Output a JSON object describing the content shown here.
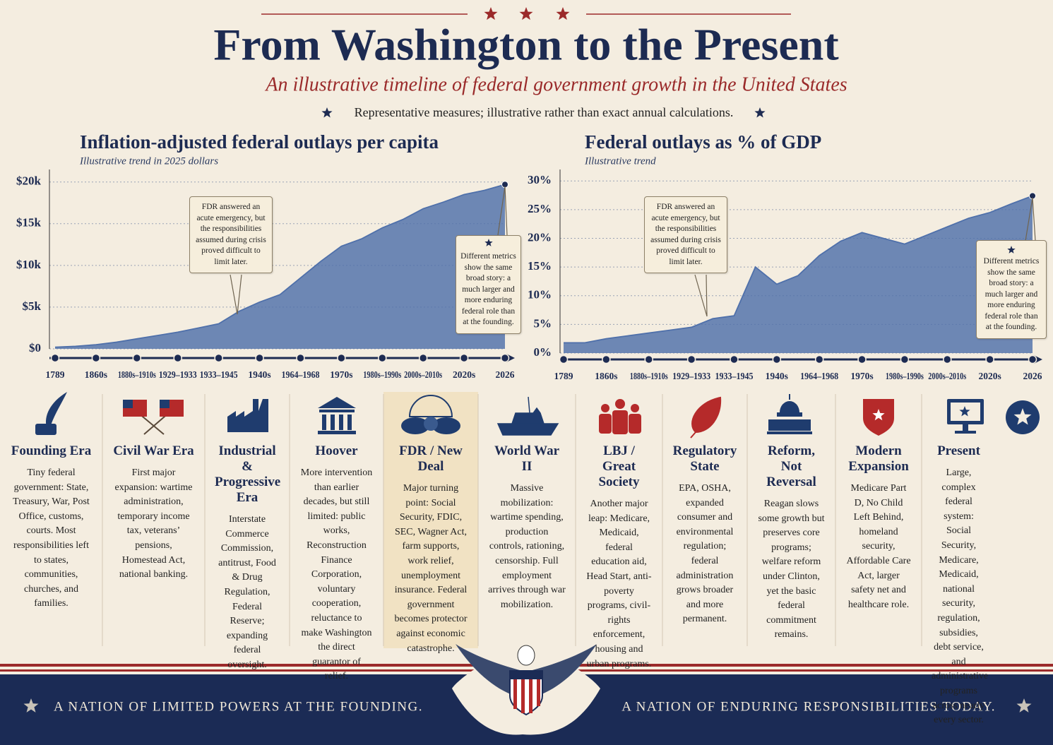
{
  "header": {
    "title": "From Washington to the Present",
    "subtitle": "An illustrative timeline of federal government growth in the United States",
    "note": "Representative measures; illustrative rather than exact annual calculations."
  },
  "chart_data": [
    {
      "type": "area",
      "title": "Inflation-adjusted federal outlays per capita",
      "subtitle": "Illustrative trend in 2025 dollars",
      "categories": [
        "1789",
        null,
        "1860s",
        null,
        "1880s–1910s",
        null,
        "1929–1933",
        null,
        "1933–1945",
        null,
        "1940s",
        null,
        "1964–1968",
        null,
        "1970s",
        null,
        "1980s–1990s",
        null,
        "2000s–2010s",
        null,
        "2020s",
        null,
        "2026"
      ],
      "values": [
        200,
        300,
        500,
        800,
        1200,
        1600,
        2000,
        2500,
        3000,
        4500,
        5600,
        6500,
        8500,
        10500,
        12300,
        13200,
        14500,
        15500,
        16800,
        17600,
        18500,
        19000,
        19700
      ],
      "color": "#4f70aa",
      "ylim": [
        0,
        21500
      ],
      "yticks": [
        {
          "value": 0,
          "label": "$0"
        },
        {
          "value": 5000,
          "label": "$5k"
        },
        {
          "value": 10000,
          "label": "$10k"
        },
        {
          "value": 15000,
          "label": "$15k"
        },
        {
          "value": 20000,
          "label": "$20k"
        }
      ],
      "grid": true,
      "annotations": [
        "FDR answered an acute emergency, but the responsibilities assumed during crisis proved difficult to limit later.",
        "Different metrics show the same broad story: a much larger and more enduring federal role than at the founding."
      ]
    },
    {
      "type": "area",
      "title": "Federal outlays as % of GDP",
      "subtitle": "Illustrative trend",
      "categories": [
        "1789",
        null,
        "1860s",
        null,
        "1880s–1910s",
        null,
        "1929–1933",
        null,
        "1933–1945",
        null,
        "1940s",
        null,
        "1964–1968",
        null,
        "1970s",
        null,
        "1980s–1990s",
        null,
        "2000s–2010s",
        null,
        "2020s",
        null,
        "2026"
      ],
      "values": [
        1.8,
        1.8,
        2.5,
        3.0,
        3.5,
        4.0,
        4.5,
        6.0,
        6.5,
        15.0,
        12.0,
        13.5,
        17.0,
        19.5,
        21.0,
        20.0,
        19.0,
        20.5,
        22.0,
        23.5,
        24.5,
        26.0,
        27.4
      ],
      "color": "#4f70aa",
      "ylim": [
        0,
        32
      ],
      "yticks": [
        {
          "value": 0,
          "label": "0%"
        },
        {
          "value": 5,
          "label": "5%"
        },
        {
          "value": 10,
          "label": "10%"
        },
        {
          "value": 15,
          "label": "15%"
        },
        {
          "value": 20,
          "label": "20%"
        },
        {
          "value": 25,
          "label": "25%"
        },
        {
          "value": 30,
          "label": "30%"
        }
      ],
      "grid": true,
      "annotations": [
        "FDR answered an acute emergency, but the responsibilities assumed during crisis proved difficult to limit later.",
        "Different metrics show the same broad story: a much larger and more enduring federal role than at the founding."
      ]
    }
  ],
  "eras": [
    {
      "title": "Founding Era",
      "text": "Tiny federal government: State, Treasury, War, Post Office, customs, courts. Most responsibilities left to states, communities, churches, and families."
    },
    {
      "title": "Civil War Era",
      "text": "First major expansion: wartime administration, temporary income tax, veterans’ pensions, Homestead Act, national banking."
    },
    {
      "title": "Industrial & Progressive Era",
      "text": "Interstate Commerce Commission, antitrust, Food & Drug Regulation, Federal Reserve; expanding federal oversight."
    },
    {
      "title": "Hoover",
      "text": "More intervention than earlier decades, but still limited: public works, Reconstruction Finance Corporation, voluntary cooperation, reluctance to make Washington the direct guarantor of relief."
    },
    {
      "title": "FDR / New Deal",
      "text": "Major turning point: Social Security, FDIC, SEC, Wagner Act, farm supports, work relief, unemployment insurance. Federal government becomes protector against economic catastrophe."
    },
    {
      "title": "World War II",
      "text": "Massive mobilization: wartime spending, production controls, rationing, censorship. Full employment arrives through war mobilization."
    },
    {
      "title": "LBJ / Great Society",
      "text": "Another major leap: Medicare, Medicaid, federal education aid, Head Start, anti-poverty programs, civil-rights enforcement, housing and urban programs."
    },
    {
      "title": "Regulatory State",
      "text": "EPA, OSHA, expanded consumer and environmental regulation; federal administration grows broader and more permanent."
    },
    {
      "title": "Reform, Not Reversal",
      "text": "Reagan slows some growth but preserves core programs; welfare reform under Clinton, yet the basic federal commitment remains."
    },
    {
      "title": "Modern Expansion",
      "text": "Medicare Part D, No Child Left Behind, homeland security, Affordable Care Act, larger safety net and healthcare role."
    },
    {
      "title": "Present",
      "text": "Large, complex federal system: Social Security, Medicare, Medicaid, national security, regulation, subsidies, debt service, and administrative programs across nearly every sector."
    }
  ],
  "footer": {
    "left": "A NATION OF LIMITED POWERS AT THE FOUNDING.",
    "right": "A NATION OF ENDURING RESPONSIBILITIES TODAY."
  }
}
